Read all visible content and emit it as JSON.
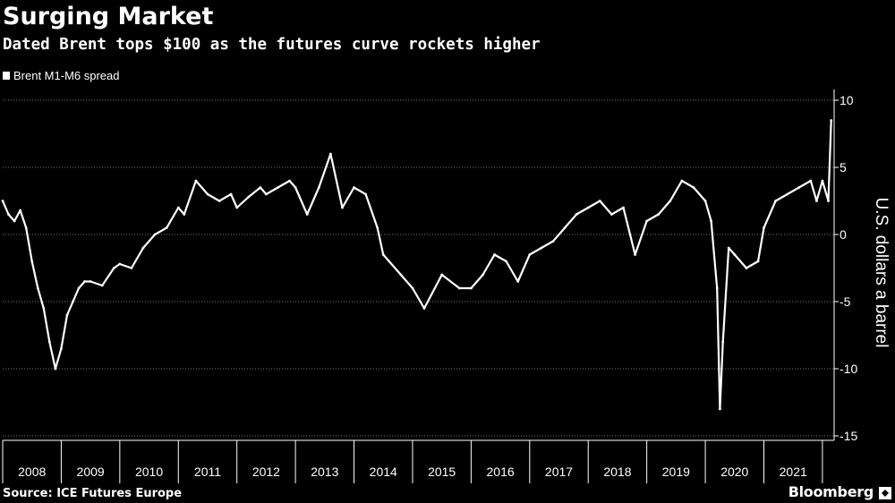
{
  "header": {
    "title": "Surging Market",
    "subtitle": "Dated Brent tops $100 as the futures curve rockets higher"
  },
  "footer": {
    "source": "Source: ICE Futures Europe",
    "brand": "Bloomberg"
  },
  "colors": {
    "background": "#000000",
    "line": "#ffffff",
    "grid": "#777777"
  },
  "chart_data": {
    "type": "line",
    "title": "Surging Market",
    "subtitle": "Dated Brent tops $100 as the futures curve rockets higher",
    "xlabel": "",
    "ylabel": "U.S. dollars a barrel",
    "ylim": [
      -15,
      10
    ],
    "yticks": [
      10,
      5,
      0,
      -5,
      -10,
      -15
    ],
    "ytick_labels": [
      "10",
      "5",
      "0",
      "-5",
      "-10",
      "-15"
    ],
    "xlim": [
      2008.0,
      2022.2
    ],
    "categories": [
      "2008",
      "2009",
      "2010",
      "2011",
      "2012",
      "2013",
      "2014",
      "2015",
      "2016",
      "2017",
      "2018",
      "2019",
      "2020",
      "2021"
    ],
    "grid": true,
    "legend_position": "top-left",
    "series": [
      {
        "name": "Brent M1-M6 spread",
        "x": [
          2008.0,
          2008.1,
          2008.2,
          2008.3,
          2008.4,
          2008.5,
          2008.6,
          2008.7,
          2008.8,
          2008.9,
          2009.0,
          2009.1,
          2009.2,
          2009.3,
          2009.4,
          2009.5,
          2009.7,
          2009.9,
          2010.0,
          2010.2,
          2010.4,
          2010.6,
          2010.8,
          2011.0,
          2011.1,
          2011.3,
          2011.5,
          2011.7,
          2011.9,
          2012.0,
          2012.2,
          2012.4,
          2012.5,
          2012.7,
          2012.9,
          2013.0,
          2013.2,
          2013.4,
          2013.6,
          2013.8,
          2014.0,
          2014.2,
          2014.4,
          2014.5,
          2014.6,
          2014.8,
          2015.0,
          2015.2,
          2015.5,
          2015.8,
          2016.0,
          2016.2,
          2016.4,
          2016.6,
          2016.8,
          2017.0,
          2017.2,
          2017.4,
          2017.6,
          2017.8,
          2018.0,
          2018.2,
          2018.4,
          2018.6,
          2018.8,
          2019.0,
          2019.2,
          2019.4,
          2019.6,
          2019.8,
          2020.0,
          2020.1,
          2020.2,
          2020.25,
          2020.3,
          2020.4,
          2020.5,
          2020.7,
          2020.9,
          2021.0,
          2021.2,
          2021.4,
          2021.6,
          2021.8,
          2021.9,
          2022.0,
          2022.1,
          2022.15
        ],
        "y": [
          2.5,
          1.5,
          1.0,
          1.8,
          0.5,
          -2.0,
          -4.0,
          -5.5,
          -8.0,
          -10.0,
          -8.5,
          -6.0,
          -5.0,
          -4.0,
          -3.5,
          -3.5,
          -3.8,
          -2.5,
          -2.2,
          -2.5,
          -1.0,
          0.0,
          0.5,
          2.0,
          1.5,
          4.0,
          3.0,
          2.5,
          3.0,
          2.0,
          2.8,
          3.5,
          3.0,
          3.5,
          4.0,
          3.5,
          1.5,
          3.5,
          6.0,
          2.0,
          3.5,
          3.0,
          0.5,
          -1.5,
          -2.0,
          -3.0,
          -4.0,
          -5.5,
          -3.0,
          -4.0,
          -4.0,
          -3.0,
          -1.5,
          -2.0,
          -3.5,
          -1.5,
          -1.0,
          -0.5,
          0.5,
          1.5,
          2.0,
          2.5,
          1.5,
          2.0,
          -1.5,
          1.0,
          1.5,
          2.5,
          4.0,
          3.5,
          2.5,
          1.0,
          -4.0,
          -13.0,
          -8.0,
          -1.0,
          -1.5,
          -2.5,
          -2.0,
          0.5,
          2.5,
          3.0,
          3.5,
          4.0,
          2.5,
          4.0,
          2.5,
          8.5
        ]
      }
    ]
  }
}
